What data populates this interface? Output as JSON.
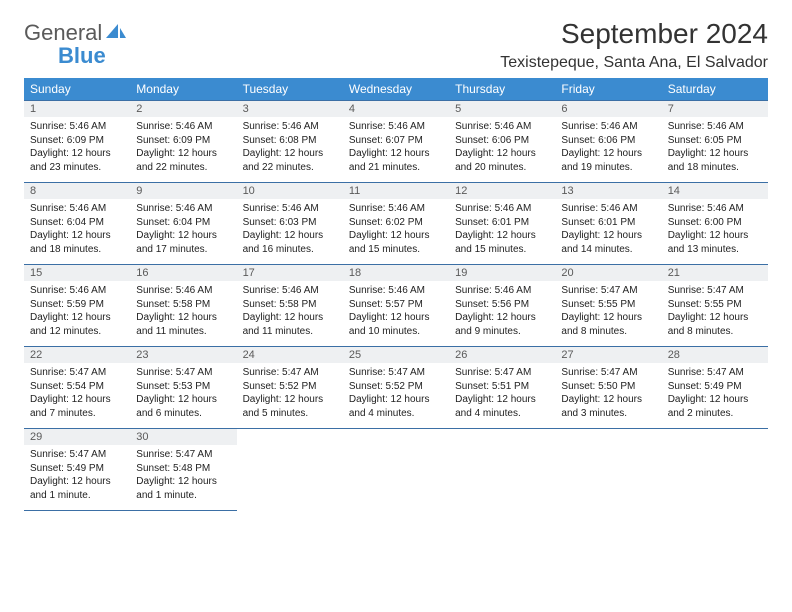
{
  "logo": {
    "text_general": "General",
    "text_blue": "Blue",
    "icon_color": "#3b8bd0"
  },
  "colors": {
    "header_bg": "#3b8bd0",
    "header_text": "#ffffff",
    "daynum_bg": "#eef0f2",
    "daynum_text": "#5a5a5a",
    "cell_border": "#3b6fa5",
    "body_text": "#222222",
    "title_text": "#333333"
  },
  "typography": {
    "month_fontsize": 28,
    "location_fontsize": 16,
    "weekday_fontsize": 12,
    "daynum_fontsize": 11,
    "cell_fontsize": 10
  },
  "title": "September 2024",
  "location": "Texistepeque, Santa Ana, El Salvador",
  "weekdays": [
    "Sunday",
    "Monday",
    "Tuesday",
    "Wednesday",
    "Thursday",
    "Friday",
    "Saturday"
  ],
  "days": [
    {
      "n": "1",
      "sunrise": "Sunrise: 5:46 AM",
      "sunset": "Sunset: 6:09 PM",
      "daylight": "Daylight: 12 hours and 23 minutes."
    },
    {
      "n": "2",
      "sunrise": "Sunrise: 5:46 AM",
      "sunset": "Sunset: 6:09 PM",
      "daylight": "Daylight: 12 hours and 22 minutes."
    },
    {
      "n": "3",
      "sunrise": "Sunrise: 5:46 AM",
      "sunset": "Sunset: 6:08 PM",
      "daylight": "Daylight: 12 hours and 22 minutes."
    },
    {
      "n": "4",
      "sunrise": "Sunrise: 5:46 AM",
      "sunset": "Sunset: 6:07 PM",
      "daylight": "Daylight: 12 hours and 21 minutes."
    },
    {
      "n": "5",
      "sunrise": "Sunrise: 5:46 AM",
      "sunset": "Sunset: 6:06 PM",
      "daylight": "Daylight: 12 hours and 20 minutes."
    },
    {
      "n": "6",
      "sunrise": "Sunrise: 5:46 AM",
      "sunset": "Sunset: 6:06 PM",
      "daylight": "Daylight: 12 hours and 19 minutes."
    },
    {
      "n": "7",
      "sunrise": "Sunrise: 5:46 AM",
      "sunset": "Sunset: 6:05 PM",
      "daylight": "Daylight: 12 hours and 18 minutes."
    },
    {
      "n": "8",
      "sunrise": "Sunrise: 5:46 AM",
      "sunset": "Sunset: 6:04 PM",
      "daylight": "Daylight: 12 hours and 18 minutes."
    },
    {
      "n": "9",
      "sunrise": "Sunrise: 5:46 AM",
      "sunset": "Sunset: 6:04 PM",
      "daylight": "Daylight: 12 hours and 17 minutes."
    },
    {
      "n": "10",
      "sunrise": "Sunrise: 5:46 AM",
      "sunset": "Sunset: 6:03 PM",
      "daylight": "Daylight: 12 hours and 16 minutes."
    },
    {
      "n": "11",
      "sunrise": "Sunrise: 5:46 AM",
      "sunset": "Sunset: 6:02 PM",
      "daylight": "Daylight: 12 hours and 15 minutes."
    },
    {
      "n": "12",
      "sunrise": "Sunrise: 5:46 AM",
      "sunset": "Sunset: 6:01 PM",
      "daylight": "Daylight: 12 hours and 15 minutes."
    },
    {
      "n": "13",
      "sunrise": "Sunrise: 5:46 AM",
      "sunset": "Sunset: 6:01 PM",
      "daylight": "Daylight: 12 hours and 14 minutes."
    },
    {
      "n": "14",
      "sunrise": "Sunrise: 5:46 AM",
      "sunset": "Sunset: 6:00 PM",
      "daylight": "Daylight: 12 hours and 13 minutes."
    },
    {
      "n": "15",
      "sunrise": "Sunrise: 5:46 AM",
      "sunset": "Sunset: 5:59 PM",
      "daylight": "Daylight: 12 hours and 12 minutes."
    },
    {
      "n": "16",
      "sunrise": "Sunrise: 5:46 AM",
      "sunset": "Sunset: 5:58 PM",
      "daylight": "Daylight: 12 hours and 11 minutes."
    },
    {
      "n": "17",
      "sunrise": "Sunrise: 5:46 AM",
      "sunset": "Sunset: 5:58 PM",
      "daylight": "Daylight: 12 hours and 11 minutes."
    },
    {
      "n": "18",
      "sunrise": "Sunrise: 5:46 AM",
      "sunset": "Sunset: 5:57 PM",
      "daylight": "Daylight: 12 hours and 10 minutes."
    },
    {
      "n": "19",
      "sunrise": "Sunrise: 5:46 AM",
      "sunset": "Sunset: 5:56 PM",
      "daylight": "Daylight: 12 hours and 9 minutes."
    },
    {
      "n": "20",
      "sunrise": "Sunrise: 5:47 AM",
      "sunset": "Sunset: 5:55 PM",
      "daylight": "Daylight: 12 hours and 8 minutes."
    },
    {
      "n": "21",
      "sunrise": "Sunrise: 5:47 AM",
      "sunset": "Sunset: 5:55 PM",
      "daylight": "Daylight: 12 hours and 8 minutes."
    },
    {
      "n": "22",
      "sunrise": "Sunrise: 5:47 AM",
      "sunset": "Sunset: 5:54 PM",
      "daylight": "Daylight: 12 hours and 7 minutes."
    },
    {
      "n": "23",
      "sunrise": "Sunrise: 5:47 AM",
      "sunset": "Sunset: 5:53 PM",
      "daylight": "Daylight: 12 hours and 6 minutes."
    },
    {
      "n": "24",
      "sunrise": "Sunrise: 5:47 AM",
      "sunset": "Sunset: 5:52 PM",
      "daylight": "Daylight: 12 hours and 5 minutes."
    },
    {
      "n": "25",
      "sunrise": "Sunrise: 5:47 AM",
      "sunset": "Sunset: 5:52 PM",
      "daylight": "Daylight: 12 hours and 4 minutes."
    },
    {
      "n": "26",
      "sunrise": "Sunrise: 5:47 AM",
      "sunset": "Sunset: 5:51 PM",
      "daylight": "Daylight: 12 hours and 4 minutes."
    },
    {
      "n": "27",
      "sunrise": "Sunrise: 5:47 AM",
      "sunset": "Sunset: 5:50 PM",
      "daylight": "Daylight: 12 hours and 3 minutes."
    },
    {
      "n": "28",
      "sunrise": "Sunrise: 5:47 AM",
      "sunset": "Sunset: 5:49 PM",
      "daylight": "Daylight: 12 hours and 2 minutes."
    },
    {
      "n": "29",
      "sunrise": "Sunrise: 5:47 AM",
      "sunset": "Sunset: 5:49 PM",
      "daylight": "Daylight: 12 hours and 1 minute."
    },
    {
      "n": "30",
      "sunrise": "Sunrise: 5:47 AM",
      "sunset": "Sunset: 5:48 PM",
      "daylight": "Daylight: 12 hours and 1 minute."
    }
  ]
}
